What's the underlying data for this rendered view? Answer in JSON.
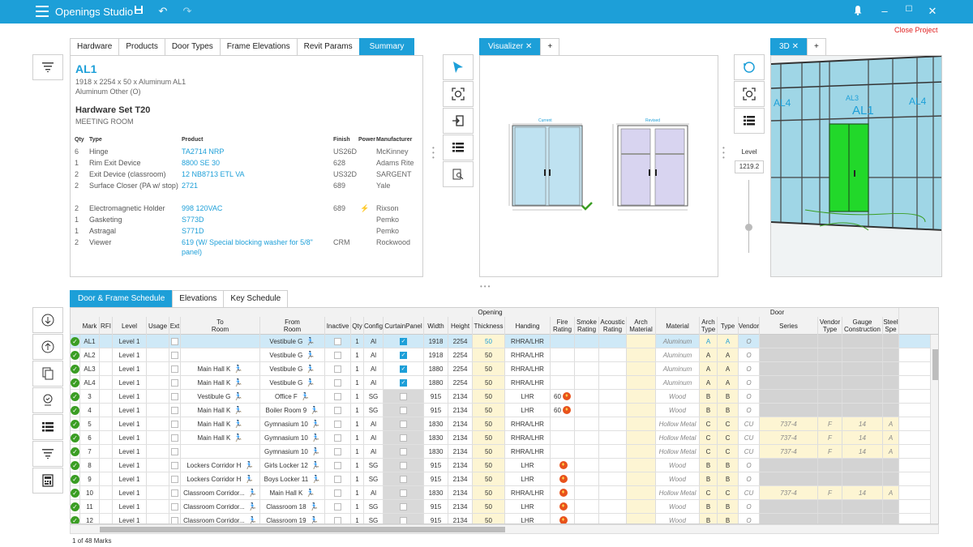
{
  "app": {
    "title": "Openings Studio",
    "close_project": "Close Project"
  },
  "colors": {
    "accent": "#1d9fd8",
    "ok": "#3a9d23",
    "fire": "#e8521c",
    "highlight": "#cfe9f7",
    "beige": "#fdf5d3",
    "gray": "#d3d3d3"
  },
  "summary": {
    "tabs": [
      "Hardware",
      "Products",
      "Door Types",
      "Frame Elevations",
      "Revit Params",
      "Summary"
    ],
    "mark": "AL1",
    "dims": "1918 x 2254 x 50 x Aluminum AL1",
    "material": "Aluminum Other (O)",
    "hwset": "Hardware Set T20",
    "room": "MEETING ROOM",
    "headers": {
      "qty": "Qty",
      "type": "Type",
      "product": "Product",
      "finish": "Finish",
      "power": "Power",
      "manufacturer": "Manufacturer"
    },
    "items": [
      {
        "qty": "6",
        "type": "Hinge",
        "product": "TA2714 NRP",
        "finish": "US26D",
        "power": "",
        "mfr": "McKinney"
      },
      {
        "qty": "1",
        "type": "Rim Exit Device",
        "product": "8800 SE 30",
        "finish": "628",
        "power": "",
        "mfr": "Adams Rite"
      },
      {
        "qty": "2",
        "type": "Exit Device (classroom)",
        "product": "12 NB8713 ETL VA",
        "finish": "US32D",
        "power": "",
        "mfr": "SARGENT"
      },
      {
        "qty": "2",
        "type": "Surface Closer (PA w/ stop)",
        "product": "2721",
        "finish": "689",
        "power": "",
        "mfr": "Yale"
      },
      {
        "qty": "2",
        "type": "Electromagnetic Holder",
        "product": "998 120VAC",
        "finish": "689",
        "power": "⚡",
        "mfr": "Rixson"
      },
      {
        "qty": "1",
        "type": "Gasketing",
        "product": "S773D",
        "finish": "",
        "power": "",
        "mfr": "Pemko"
      },
      {
        "qty": "1",
        "type": "Astragal",
        "product": "S771D",
        "finish": "",
        "power": "",
        "mfr": "Pemko"
      },
      {
        "qty": "2",
        "type": "Viewer",
        "product": "619 (W/ Special blocking washer for 5/8\" panel)",
        "finish": "CRM",
        "power": "",
        "mfr": "Rockwood"
      }
    ]
  },
  "visualizer": {
    "tab": "Visualizer",
    "add": "+",
    "current_label": "Current",
    "revised_label": "Revised"
  },
  "view3d": {
    "tab": "3D",
    "add": "+",
    "level_label": "Level",
    "level_value": "1219.2",
    "labels": [
      "AL4",
      "AL3",
      "AL1",
      "AL4"
    ]
  },
  "schedule": {
    "tabs": [
      "Door & Frame Schedule",
      "Elevations",
      "Key Schedule"
    ],
    "group_opening": "Opening",
    "group_door": "Door",
    "columns": [
      "Mark",
      "RFI",
      "Level",
      "Usage",
      "Ext",
      "To\nRoom",
      "From\nRoom",
      "Inactive",
      "Qty",
      "Config",
      "CurtainPanel",
      "Width",
      "Height",
      "Thickness",
      "Handing",
      "Fire\nRating",
      "Smoke\nRating",
      "Acoustic\nRating",
      "Arch\nMaterial",
      "Material",
      "Arch\nType",
      "Type",
      "Vendor",
      "Series",
      "Vendor\nType",
      "Gauge\nConstruction",
      "Steel\nSpe"
    ],
    "rows": [
      {
        "mark": "AL1",
        "level": "Level 1",
        "to": "",
        "from": "Vestibule G",
        "qty": "1",
        "config": "Al",
        "curtain": true,
        "width": "1918",
        "height": "2254",
        "thk": "50",
        "hand": "RHRA/LHR",
        "fire": "",
        "material": "Aluminum",
        "atype": "A",
        "type": "A",
        "vendor": "O",
        "series": "",
        "vtype": "",
        "gauge": "",
        "steel": ""
      },
      {
        "mark": "AL2",
        "level": "Level 1",
        "to": "",
        "from": "Vestibule G",
        "qty": "1",
        "config": "Al",
        "curtain": true,
        "width": "1918",
        "height": "2254",
        "thk": "50",
        "hand": "RHRA/LHR",
        "fire": "",
        "material": "Aluminum",
        "atype": "A",
        "type": "A",
        "vendor": "O",
        "series": "",
        "vtype": "",
        "gauge": "",
        "steel": ""
      },
      {
        "mark": "AL3",
        "level": "Level 1",
        "to": "Main Hall K",
        "from": "Vestibule G",
        "qty": "1",
        "config": "Al",
        "curtain": true,
        "width": "1880",
        "height": "2254",
        "thk": "50",
        "hand": "RHRA/LHR",
        "fire": "",
        "material": "Aluminum",
        "atype": "A",
        "type": "A",
        "vendor": "O",
        "series": "",
        "vtype": "",
        "gauge": "",
        "steel": ""
      },
      {
        "mark": "AL4",
        "level": "Level 1",
        "to": "Main Hall K",
        "from": "Vestibule G",
        "qty": "1",
        "config": "Al",
        "curtain": true,
        "width": "1880",
        "height": "2254",
        "thk": "50",
        "hand": "RHRA/LHR",
        "fire": "",
        "material": "Aluminum",
        "atype": "A",
        "type": "A",
        "vendor": "O",
        "series": "",
        "vtype": "",
        "gauge": "",
        "steel": ""
      },
      {
        "mark": "3",
        "level": "Level 1",
        "to": "Vestibule G",
        "from": "Office F",
        "qty": "1",
        "config": "SG",
        "curtain": false,
        "width": "915",
        "height": "2134",
        "thk": "50",
        "hand": "LHR",
        "fire": "60",
        "material": "Wood",
        "atype": "B",
        "type": "B",
        "vendor": "O",
        "series": "",
        "vtype": "",
        "gauge": "",
        "steel": ""
      },
      {
        "mark": "4",
        "level": "Level 1",
        "to": "Main Hall K",
        "from": "Boiler Room 9",
        "qty": "1",
        "config": "SG",
        "curtain": false,
        "width": "915",
        "height": "2134",
        "thk": "50",
        "hand": "LHR",
        "fire": "60",
        "material": "Wood",
        "atype": "B",
        "type": "B",
        "vendor": "O",
        "series": "",
        "vtype": "",
        "gauge": "",
        "steel": ""
      },
      {
        "mark": "5",
        "level": "Level 1",
        "to": "Main Hall K",
        "from": "Gymnasium 10",
        "qty": "1",
        "config": "Al",
        "curtain": false,
        "width": "1830",
        "height": "2134",
        "thk": "50",
        "hand": "RHRA/LHR",
        "fire": "",
        "material": "Hollow Metal",
        "atype": "C",
        "type": "C",
        "vendor": "CU",
        "series": "737-4",
        "vtype": "F",
        "gauge": "14",
        "steel": "A"
      },
      {
        "mark": "6",
        "level": "Level 1",
        "to": "Main Hall K",
        "from": "Gymnasium 10",
        "qty": "1",
        "config": "Al",
        "curtain": false,
        "width": "1830",
        "height": "2134",
        "thk": "50",
        "hand": "RHRA/LHR",
        "fire": "",
        "material": "Hollow Metal",
        "atype": "C",
        "type": "C",
        "vendor": "CU",
        "series": "737-4",
        "vtype": "F",
        "gauge": "14",
        "steel": "A"
      },
      {
        "mark": "7",
        "level": "Level 1",
        "to": "",
        "from": "Gymnasium 10",
        "qty": "1",
        "config": "Al",
        "curtain": false,
        "width": "1830",
        "height": "2134",
        "thk": "50",
        "hand": "RHRA/LHR",
        "fire": "",
        "material": "Hollow Metal",
        "atype": "C",
        "type": "C",
        "vendor": "CU",
        "series": "737-4",
        "vtype": "F",
        "gauge": "14",
        "steel": "A"
      },
      {
        "mark": "8",
        "level": "Level 1",
        "to": "Lockers Corridor H",
        "from": "Girls Locker 12",
        "qty": "1",
        "config": "SG",
        "curtain": false,
        "width": "915",
        "height": "2134",
        "thk": "50",
        "hand": "LHR",
        "fire": "f",
        "material": "Wood",
        "atype": "B",
        "type": "B",
        "vendor": "O",
        "series": "",
        "vtype": "",
        "gauge": "",
        "steel": ""
      },
      {
        "mark": "9",
        "level": "Level 1",
        "to": "Lockers Corridor H",
        "from": "Boys Locker 11",
        "qty": "1",
        "config": "SG",
        "curtain": false,
        "width": "915",
        "height": "2134",
        "thk": "50",
        "hand": "LHR",
        "fire": "f",
        "material": "Wood",
        "atype": "B",
        "type": "B",
        "vendor": "O",
        "series": "",
        "vtype": "",
        "gauge": "",
        "steel": ""
      },
      {
        "mark": "10",
        "level": "Level 1",
        "to": "Classroom Corridor...",
        "from": "Main Hall K",
        "qty": "1",
        "config": "Al",
        "curtain": false,
        "width": "1830",
        "height": "2134",
        "thk": "50",
        "hand": "RHRA/LHR",
        "fire": "f",
        "material": "Hollow Metal",
        "atype": "C",
        "type": "C",
        "vendor": "CU",
        "series": "737-4",
        "vtype": "F",
        "gauge": "14",
        "steel": "A"
      },
      {
        "mark": "11",
        "level": "Level 1",
        "to": "Classroom Corridor...",
        "from": "Classroom 18",
        "qty": "1",
        "config": "SG",
        "curtain": false,
        "width": "915",
        "height": "2134",
        "thk": "50",
        "hand": "LHR",
        "fire": "f",
        "material": "Wood",
        "atype": "B",
        "type": "B",
        "vendor": "O",
        "series": "",
        "vtype": "",
        "gauge": "",
        "steel": ""
      },
      {
        "mark": "12",
        "level": "Level 1",
        "to": "Classroom Corridor...",
        "from": "Classroom 19",
        "qty": "1",
        "config": "SG",
        "curtain": false,
        "width": "915",
        "height": "2134",
        "thk": "50",
        "hand": "LHR",
        "fire": "f",
        "material": "Wood",
        "atype": "B",
        "type": "B",
        "vendor": "O",
        "series": "",
        "vtype": "",
        "gauge": "",
        "steel": ""
      }
    ],
    "status": "1 of 48 Marks"
  }
}
